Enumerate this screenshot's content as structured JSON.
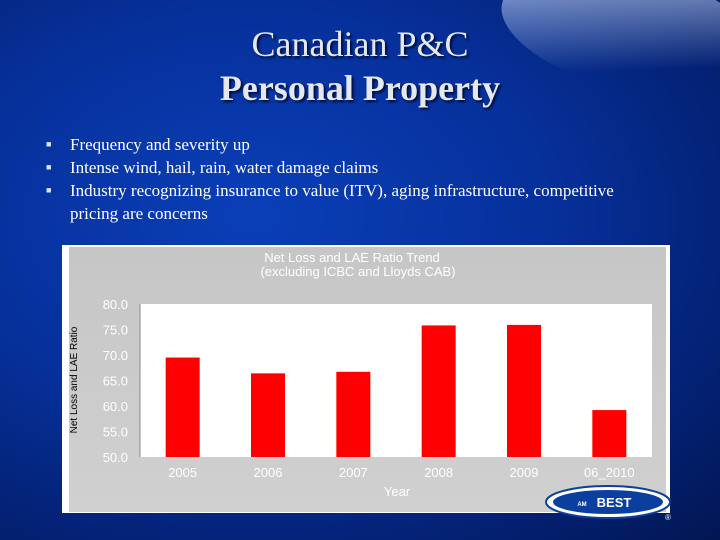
{
  "slide": {
    "title_line1": "Canadian P&C",
    "title_line2": "Personal Property",
    "bullets": [
      "Frequency and severity up",
      "Intense wind, hail, rain, water damage claims",
      "Industry recognizing insurance to value (ITV), aging infrastructure, competitive pricing are concerns"
    ],
    "bullet_icon": "square-bullet-icon",
    "logo_text": "BEST",
    "logo_prefix": "AM",
    "registered_mark": "®"
  },
  "colors": {
    "background": "#06309a",
    "bar": "#ff0000",
    "plot_background": "#ffffff",
    "chart_frame": "#c8c8c8"
  },
  "chart_data": {
    "type": "bar",
    "title": "Net Loss and LAE Ratio Trend",
    "subtitle": "(excluding ICBC and Lloyds CAB)",
    "xlabel": "Year",
    "ylabel": "Net Loss and LAE Ratio",
    "categories": [
      "2005",
      "2006",
      "2007",
      "2008",
      "2009",
      "06_2010"
    ],
    "values": [
      69.5,
      66.4,
      66.7,
      75.8,
      75.9,
      59.2
    ],
    "data_labels": [
      "69.5",
      "66.4",
      "66.7",
      "75.8",
      "75.9",
      "59.2"
    ],
    "ylim": [
      50,
      80
    ],
    "yticks": [
      "50.0",
      "55.0",
      "60.0",
      "65.0",
      "70.0",
      "75.0",
      "80.0"
    ],
    "grid": false,
    "legend": "none"
  }
}
